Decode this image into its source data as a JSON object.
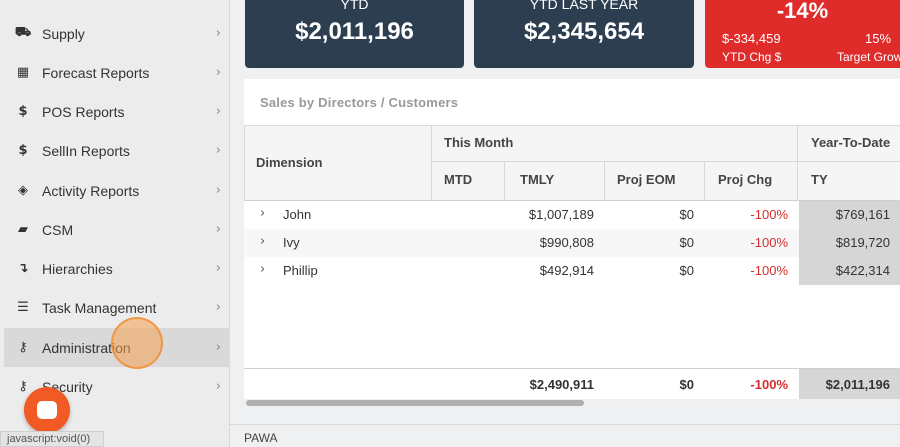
{
  "sidebar": {
    "items": [
      {
        "label": "Supply",
        "icon": "truck-icon",
        "glyph": "⛟"
      },
      {
        "label": "Forecast Reports",
        "icon": "table-icon",
        "glyph": "▦"
      },
      {
        "label": "POS Reports",
        "icon": "dollar-icon",
        "glyph": "$"
      },
      {
        "label": "SellIn Reports",
        "icon": "dollar-icon",
        "glyph": "$"
      },
      {
        "label": "Activity Reports",
        "icon": "cube-icon",
        "glyph": "◈"
      },
      {
        "label": "CSM",
        "icon": "book-icon",
        "glyph": "▰"
      },
      {
        "label": "Hierarchies",
        "icon": "hierarchy-icon",
        "glyph": "↴"
      },
      {
        "label": "Task Management",
        "icon": "server-icon",
        "glyph": "☰"
      },
      {
        "label": "Administration",
        "icon": "key-icon",
        "glyph": "⚷"
      },
      {
        "label": "Security",
        "icon": "key-icon",
        "glyph": "⚷"
      }
    ],
    "chevron": "›"
  },
  "status_url": "javascript:void(0)",
  "kpis": {
    "ytd": {
      "title": "YTD",
      "value": "$2,011,196"
    },
    "ytd_last_year": {
      "title": "YTD LAST YEAR",
      "value": "$2,345,654"
    },
    "change": {
      "pct": "-14%",
      "chg_value": "$-334,459",
      "chg_label": "YTD Chg $",
      "growth_value": "15%",
      "growth_label": "Target Grow"
    }
  },
  "panel": {
    "title": "Sales by Directors / Customers",
    "headers": {
      "dimension": "Dimension",
      "this_month": "This Month",
      "ytd": "Year-To-Date",
      "mtd": "MTD",
      "tmly": "TMLY",
      "proj_eom": "Proj EOM",
      "proj_chg": "Proj Chg",
      "ty": "TY"
    },
    "rows": [
      {
        "name": "John",
        "tmly": "$1,007,189",
        "proj_eom": "$0",
        "proj_chg": "-100%",
        "ty": "$769,161"
      },
      {
        "name": "Ivy",
        "tmly": "$990,808",
        "proj_eom": "$0",
        "proj_chg": "-100%",
        "ty": "$819,720"
      },
      {
        "name": "Phillip",
        "tmly": "$492,914",
        "proj_eom": "$0",
        "proj_chg": "-100%",
        "ty": "$422,314"
      }
    ],
    "totals": {
      "tmly": "$2,490,911",
      "proj_eom": "$0",
      "proj_chg": "-100%",
      "ty": "$2,011,196"
    },
    "expander": "›"
  },
  "footer": {
    "text": "PAWA"
  },
  "colors": {
    "kpi_dark": "#2d3e50",
    "kpi_red": "#e02b2b",
    "negative": "#d32f2f",
    "chat": "#f15a24"
  }
}
